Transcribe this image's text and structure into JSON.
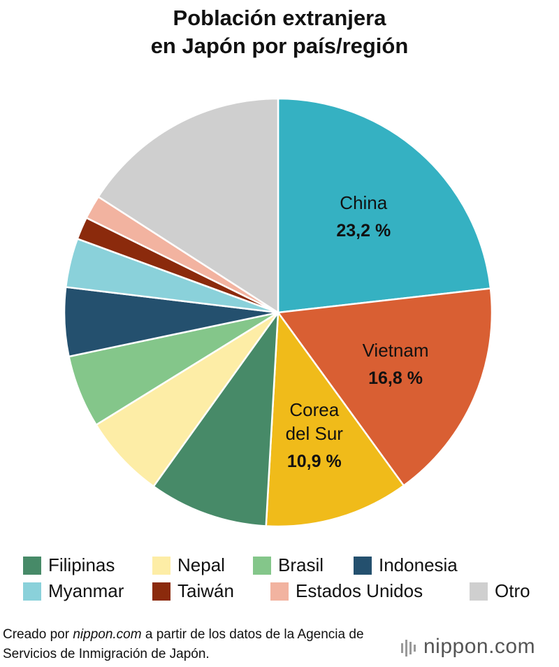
{
  "chart_data": {
    "type": "pie",
    "title": "Población extranjera\nen Japón por país/región",
    "categories": [
      "China",
      "Vietnam",
      "Corea del Sur",
      "Filipinas",
      "Nepal",
      "Brasil",
      "Indonesia",
      "Myanmar",
      "Taiwán",
      "Estados Unidos",
      "Otro"
    ],
    "values": [
      23.2,
      16.8,
      10.9,
      9.0,
      6.3,
      5.5,
      5.2,
      3.7,
      1.7,
      1.8,
      15.9
    ],
    "value_labels": [
      "23,2 %",
      "16,8 %",
      "10,9 %",
      null,
      null,
      null,
      null,
      null,
      null,
      null,
      null
    ],
    "colors": [
      "#35b1c2",
      "#d95f33",
      "#f0bb1a",
      "#478a68",
      "#fdeda6",
      "#84c68a",
      "#24506e",
      "#8ad1da",
      "#8b2a0c",
      "#f2b3a0",
      "#cfcfcf"
    ],
    "source": [
      "Creado por ",
      "nippon.com",
      " a partir de los datos de la Agencia de Servicios de Inmigración de Japón."
    ],
    "logo": "nippon.com"
  }
}
